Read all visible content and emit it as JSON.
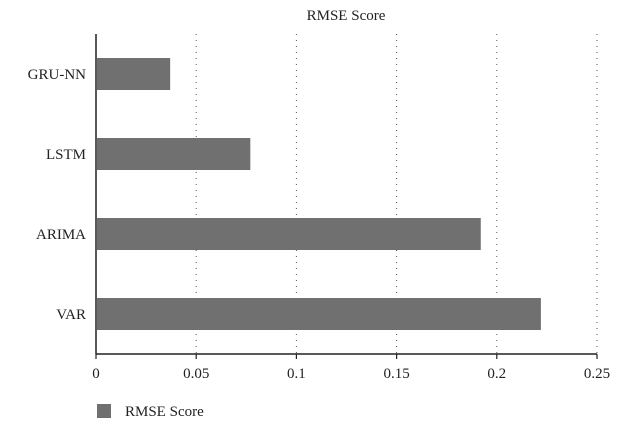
{
  "chart_data": {
    "type": "bar",
    "orientation": "horizontal",
    "title": "RMSE Score",
    "xlabel": "",
    "ylabel": "",
    "categories": [
      "GRU-NN",
      "LSTM",
      "ARIMA",
      "VAR"
    ],
    "series": [
      {
        "name": "RMSE Score",
        "values": [
          0.037,
          0.077,
          0.192,
          0.222
        ],
        "color": "#707070"
      }
    ],
    "xlim": [
      0,
      0.25
    ],
    "xticks": [
      "0",
      "0.05",
      "0.1",
      "0.15",
      "0.2",
      "0.25"
    ],
    "grid": "vertical dotted",
    "legend_position": "bottom-left"
  }
}
